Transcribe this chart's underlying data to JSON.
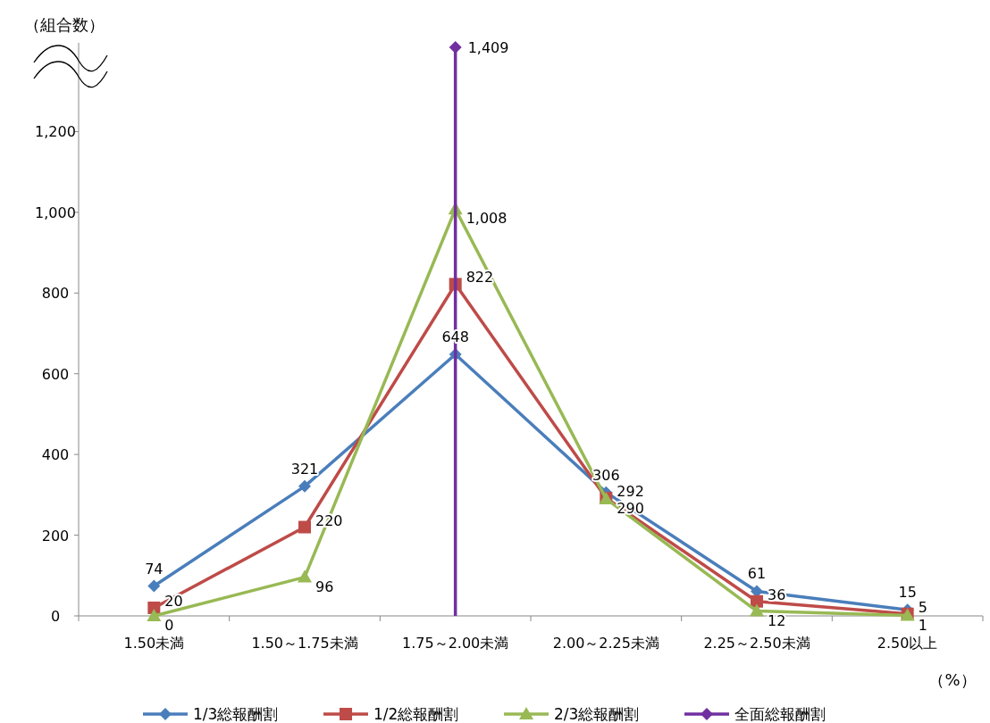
{
  "chart_data": {
    "type": "line",
    "xlabel": "（%）",
    "ylabel": "（組合数）",
    "categories": [
      "1.50未満",
      "1.50～1.75未満",
      "1.75～2.00未満",
      "2.00～2.25未満",
      "2.25～2.50未満",
      "2.50以上"
    ],
    "ylim": [
      0,
      1420
    ],
    "yticks": [
      0,
      {
        "value": 200,
        "label": "200"
      },
      {
        "value": 400,
        "label": "400"
      },
      {
        "value": 600,
        "label": "600"
      },
      {
        "value": 800,
        "label": "800"
      },
      {
        "value": 1000,
        "label": "1,000"
      },
      {
        "value": 1200,
        "label": "1,200"
      }
    ],
    "grid": false,
    "legend": "bottom",
    "line_style": "solid",
    "series": [
      {
        "name": "1/3総報酬割",
        "color": "#4a7ebb",
        "marker": "diamond",
        "values": [
          74,
          321,
          648,
          306,
          61,
          15
        ],
        "value_labels": [
          "74",
          "321",
          "648",
          "306",
          "61",
          "15"
        ]
      },
      {
        "name": "1/2総報酬割",
        "color": "#be4b48",
        "marker": "square",
        "values": [
          20,
          220,
          822,
          292,
          36,
          5
        ],
        "value_labels": [
          "20",
          "220",
          "822",
          "292",
          "36",
          "5"
        ]
      },
      {
        "name": "2/3総報酬割",
        "color": "#98b954",
        "marker": "triangle",
        "values": [
          0,
          96,
          1008,
          290,
          12,
          1
        ],
        "value_labels": [
          "0",
          "96",
          "1,008",
          "290",
          "12",
          "1"
        ]
      },
      {
        "name": "全面総報酬割",
        "color": "#7030a0",
        "type": "lollipop",
        "marker": "diamond",
        "values": [
          null,
          null,
          1409,
          null,
          null,
          null
        ],
        "value_labels": [
          null,
          null,
          "1,409",
          null,
          null,
          null
        ]
      }
    ]
  }
}
